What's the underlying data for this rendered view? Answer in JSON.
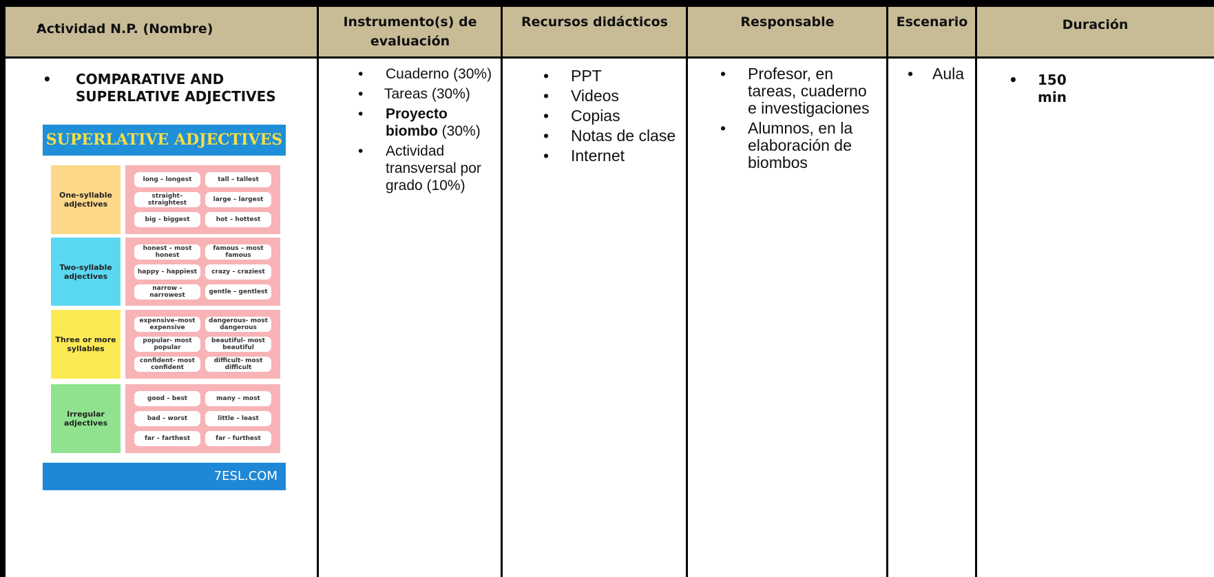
{
  "table": {
    "headers": [
      "Actividad N.P. (Nombre)",
      "Instrumento(s) de evaluación",
      "Recursos didácticos",
      "Responsable",
      "Escenario",
      "Duración"
    ],
    "rows": [
      [
        {
          "items": [
            {
              "text": "COMPARATIVE AND SUPERLATIVE ADJECTIVES"
            }
          ]
        },
        {
          "items": [
            {
              "text": "Cuaderno (30%)"
            },
            {
              "text": "Tareas (30%)"
            },
            {
              "bold": "Proyecto biombo",
              "text": "(30%)"
            },
            {
              "text": "Actividad transversal por grado (10%)"
            }
          ]
        },
        {
          "items": [
            {
              "text": "PPT"
            },
            {
              "text": "Videos"
            },
            {
              "text": "Copias"
            },
            {
              "text": "Notas de clase"
            },
            {
              "text": "Internet"
            }
          ]
        },
        {
          "items": [
            {
              "text": "Profesor, en tareas, cuaderno e investigaciones"
            },
            {
              "text": "Alumnos, en la elaboración de biombos"
            }
          ]
        },
        {
          "items": [
            {
              "text": "Aula"
            }
          ]
        },
        {
          "items": [
            {
              "text": "150 min"
            }
          ]
        }
      ]
    ]
  },
  "infographic": {
    "title": "SUPERLATIVE ADJECTIVES",
    "groups": [
      {
        "label": "One-syllable adjectives",
        "pairs": [
          "long – longest",
          "tall – tallest",
          "straight– straightest",
          "large – largest",
          "big – biggest",
          "hot – hottest"
        ]
      },
      {
        "label": "Two-syllable adjectives",
        "pairs": [
          "honest – most honest",
          "famous – most famous",
          "happy – happiest",
          "crazy – craziest",
          "narrow – narrowest",
          "gentle – gentlest"
        ]
      },
      {
        "label": "Three or more syllables",
        "pairs": [
          "expensive–most expensive",
          "dangerous- most dangerous",
          "popular- most popular",
          "beautiful- most beautiful",
          "confident- most confident",
          "difficult- most difficult"
        ]
      },
      {
        "label": "Irregular adjectives",
        "pairs": [
          "good – best",
          "many – most",
          "bad – worst",
          "little – least",
          "far – farthest",
          "far - furthest"
        ]
      }
    ],
    "footer": "7ESL.COM"
  }
}
